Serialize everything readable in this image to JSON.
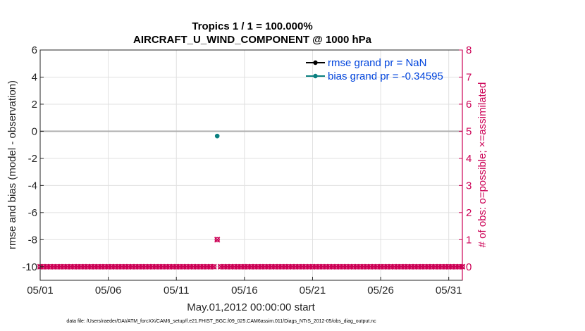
{
  "chart_data": {
    "type": "scatter",
    "title": "Tropics 1 / 1 = 100.000%",
    "subtitle": "AIRCRAFT_U_WIND_COMPONENT @ 1000 hPa",
    "xlabel": "May.01,2012 00:00:00 start",
    "ylabel_left": "rmse and bias (model - observation)",
    "ylabel_right": "# of obs: o=possible; ×=assimilated",
    "xlim": [
      1,
      32
    ],
    "ylim_left": [
      -11,
      6
    ],
    "ylim_right": [
      -0.5,
      8
    ],
    "x_ticks": [
      1,
      6,
      11,
      16,
      21,
      26,
      31
    ],
    "x_tick_labels": [
      "05/01",
      "05/06",
      "05/11",
      "05/16",
      "05/21",
      "05/26",
      "05/31"
    ],
    "y_ticks_left": [
      6,
      4,
      2,
      0,
      -2,
      -4,
      -6,
      -8,
      -10
    ],
    "y_tick_labels_left": [
      "6",
      "4",
      "2",
      "0",
      "-2",
      "-4",
      "-6",
      "-8",
      "-10"
    ],
    "y_ticks_right": [
      8,
      7,
      6,
      5,
      4,
      3,
      2,
      1,
      0
    ],
    "y_tick_labels_right": [
      "8",
      "7",
      "6",
      "5",
      "4",
      "3",
      "2",
      "1",
      "0"
    ],
    "grid": true,
    "zero_line": 0,
    "legend_position": "top-right",
    "series": [
      {
        "name": "rmse grand pr = NaN",
        "color": "#000000",
        "x": [],
        "y": []
      },
      {
        "name": "bias grand pr = -0.34595",
        "color": "#0a7f7f",
        "x": [
          14.0
        ],
        "y": [
          -0.35
        ]
      },
      {
        "name": "# of obs possible/assimilated",
        "color": "#cc0055",
        "axis": "right",
        "start_day": 1.0,
        "end_day": 32.0,
        "step_days": 0.25,
        "baseline": 0,
        "gap_after_day": 14.0,
        "special_points": [
          {
            "x": 14.0,
            "y": 1
          }
        ]
      }
    ]
  },
  "footer": "data file: /Users/raeder/DAI/ATM_forcXX/CAM6_setup/f.e21.FHIST_BGC.f09_025.CAM6assim.011/Diags_NTrS_2012-05/obs_diag_output.nc",
  "colors": {
    "axis_left": "#262626",
    "axis_right": "#cc0055",
    "grid": "#e0e0e0",
    "zero_line": "#b0b0b0",
    "legend_text": "#0044dd"
  }
}
